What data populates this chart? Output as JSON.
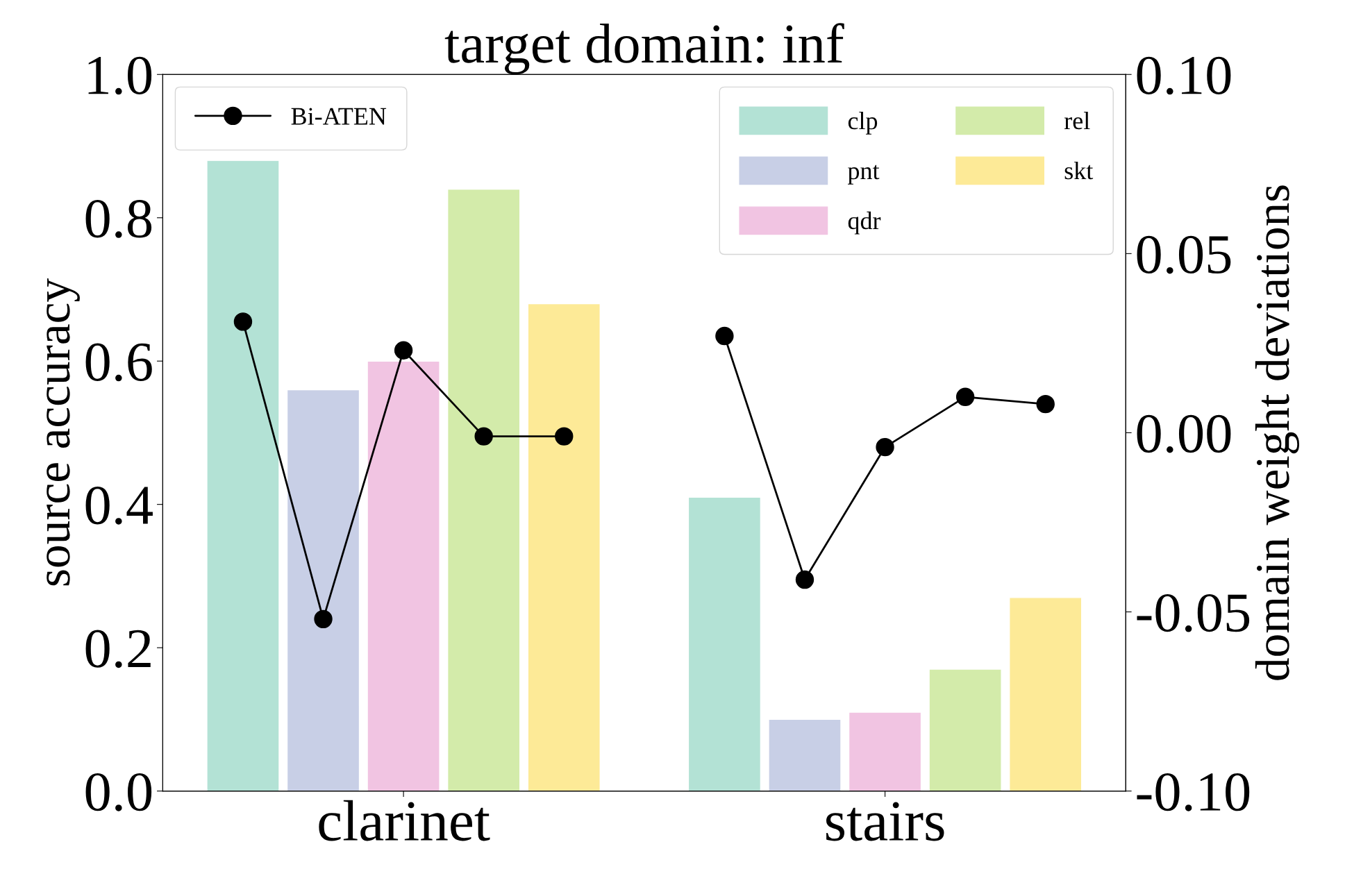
{
  "chart_data": {
    "type": "bar",
    "title": "target domain: inf",
    "ylabel": "source accuracy",
    "y2label": "domain weight deviations",
    "categories": [
      null,
      null,
      "clarinet",
      null,
      null,
      null,
      null,
      null,
      "stairs",
      null,
      null
    ],
    "series": [
      {
        "name": "clp",
        "color": "#b3e2d5",
        "values": [
          0.88,
          null,
          null,
          null,
          null,
          null,
          0.41,
          null,
          null,
          null,
          null
        ]
      },
      {
        "name": "pnt",
        "color": "#c8cfe6",
        "values": [
          null,
          0.56,
          null,
          null,
          null,
          null,
          null,
          0.1,
          null,
          null,
          null
        ]
      },
      {
        "name": "qdr",
        "color": "#f1c4e2",
        "values": [
          null,
          null,
          0.6,
          null,
          null,
          null,
          null,
          null,
          0.11,
          null,
          null
        ]
      },
      {
        "name": "rel",
        "color": "#d3ebaa",
        "values": [
          null,
          null,
          null,
          0.84,
          null,
          null,
          null,
          null,
          null,
          0.17,
          null
        ]
      },
      {
        "name": "skt",
        "color": "#fdea97",
        "values": [
          null,
          null,
          null,
          null,
          0.68,
          null,
          null,
          null,
          null,
          null,
          0.27
        ]
      },
      {
        "name": "Bi-ATEN",
        "type": "line",
        "axis": "y2",
        "color": "#000000",
        "marker": "circle",
        "values": [
          0.031,
          -0.052,
          0.023,
          -0.001,
          -0.001,
          null,
          0.027,
          -0.041,
          -0.004,
          0.01,
          0.008
        ]
      }
    ],
    "ylim": [
      0,
      1
    ],
    "yticks": [
      {
        "value": 0,
        "label": "0.0"
      },
      0.2,
      0.4,
      0.6,
      0.8,
      {
        "value": 1,
        "label": "1.0"
      }
    ],
    "y2lim": [
      -0.1,
      0.1
    ],
    "y2ticks": [
      {
        "value": -0.1,
        "label": "-0.10"
      },
      {
        "value": -0.05,
        "label": "-0.05"
      },
      {
        "value": 0,
        "label": "0.00"
      },
      0.05,
      {
        "value": 0.1,
        "label": "0.10"
      }
    ],
    "legend": "top right",
    "grid": false
  }
}
